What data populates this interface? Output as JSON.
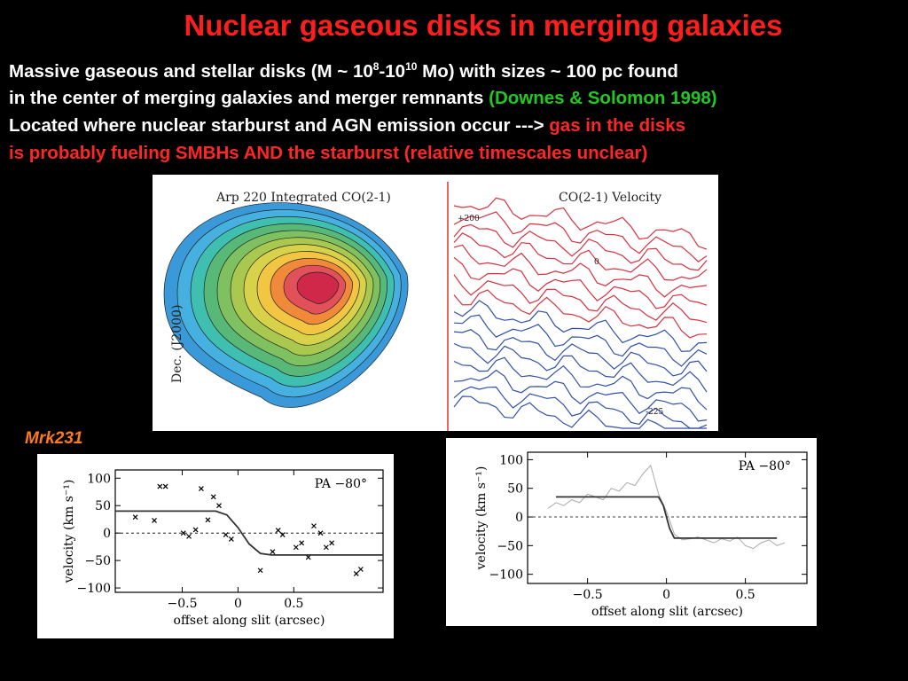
{
  "title": "Nuclear gaseous disks in merging galaxies",
  "text_lines": [
    [
      "Massive gaseous and stellar disks (M ~ 10",
      "8",
      "-10",
      "10",
      " Mo) with sizes ~ 100 pc found"
    ],
    [
      "in the center of merging galaxies and merger remnants ",
      "(Downes & Solomon 1998)"
    ],
    [
      "Located where nuclear starburst and AGN emission occur ---> ",
      "gas in the disks"
    ],
    [
      "is probably fueling SMBHs AND the starburst (relative timescales unclear)"
    ]
  ],
  "image": {
    "left_title": "Arp 220  Integrated CO(2-1)",
    "left_axis": "Dec. (J2000)",
    "right_title": "CO(2-1) Velocity",
    "right_labels": [
      "+200",
      "0",
      "-225"
    ]
  },
  "section_label": "Mrk231",
  "charts": [
    {
      "type": "scatter",
      "xlabel": "offset along slit (arcsec)",
      "ylabel": "velocity (km s⁻¹)",
      "annotation": "PA −80°",
      "xlim": [
        -1.1,
        1.3
      ],
      "ylim": [
        -108,
        115
      ],
      "xticks": [
        {
          "value": -0.5,
          "label": "−0.5"
        },
        0,
        0.5
      ],
      "yticks": [
        100,
        50,
        0,
        {
          "value": -50,
          "label": "−50"
        },
        {
          "value": -100,
          "label": "−100"
        }
      ],
      "reference_line": 0,
      "series": [
        {
          "marker": "x",
          "color": "#000000",
          "x": [
            -0.92,
            -0.75,
            -0.7,
            -0.65,
            -0.49,
            -0.44,
            -0.38,
            -0.33,
            -0.27,
            -0.22,
            -0.17,
            -0.11,
            -0.06,
            0.2,
            0.31,
            0.36,
            0.4,
            0.52,
            0.57,
            0.63,
            0.68,
            0.74,
            0.79,
            0.84,
            1.06,
            1.1
          ],
          "values": [
            29,
            23,
            85,
            85,
            0,
            -6,
            6,
            81,
            24,
            66,
            50,
            -3,
            -11,
            -68,
            -34,
            5,
            -3,
            -26,
            -18,
            -44,
            13,
            0,
            -26,
            -18,
            -74,
            -66
          ]
        },
        {
          "marker": "line",
          "color": "#333333",
          "x": [
            -1.1,
            -0.2,
            -0.1,
            0,
            0.1,
            0.2,
            0.3,
            1.3
          ],
          "values": [
            40,
            40,
            33,
            10,
            -20,
            -37,
            -40,
            -40
          ]
        }
      ]
    },
    {
      "type": "line",
      "xlabel": "offset along slit (arcsec)",
      "ylabel": "velocity (km s⁻¹)",
      "annotation": "PA −80°",
      "xlim": [
        -0.88,
        0.89
      ],
      "ylim": [
        -116,
        113
      ],
      "xticks": [
        {
          "value": -0.5,
          "label": "−0.5"
        },
        0,
        0.5
      ],
      "yticks": [
        100,
        50,
        0,
        {
          "value": -50,
          "label": "−50"
        },
        {
          "value": -100,
          "label": "−100"
        }
      ],
      "reference_line": 0,
      "series": [
        {
          "marker": "line",
          "color": "#aaaaaa",
          "x": [
            -0.75,
            -0.7,
            -0.65,
            -0.6,
            -0.55,
            -0.5,
            -0.45,
            -0.4,
            -0.35,
            -0.3,
            -0.25,
            -0.2,
            -0.15,
            -0.1,
            -0.05,
            0,
            0.05,
            0.1,
            0.15,
            0.2,
            0.25,
            0.3,
            0.35,
            0.4,
            0.45,
            0.5,
            0.55,
            0.6,
            0.65,
            0.7,
            0.75
          ],
          "values": [
            15,
            25,
            20,
            30,
            25,
            40,
            35,
            30,
            50,
            45,
            60,
            55,
            75,
            90,
            40,
            10,
            -30,
            -40,
            -38,
            -35,
            -40,
            -45,
            -38,
            -42,
            -35,
            -50,
            -55,
            -45,
            -40,
            -50,
            -45
          ]
        },
        {
          "marker": "line",
          "color": "#333333",
          "x": [
            -0.7,
            -0.05,
            -0.02,
            0,
            0.02,
            0.05,
            0.7
          ],
          "values": [
            35,
            35,
            20,
            0,
            -20,
            -37,
            -37
          ]
        }
      ]
    }
  ]
}
